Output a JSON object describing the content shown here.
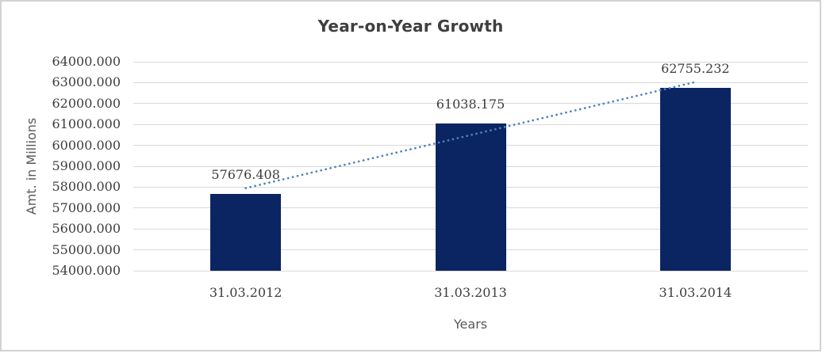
{
  "chart_data": {
    "type": "bar",
    "title": "Year-on-Year Growth",
    "xlabel": "Years",
    "ylabel": "Amt. in Millions",
    "categories": [
      "31.03.2012",
      "31.03.2013",
      "31.03.2014"
    ],
    "values": [
      57676.408,
      61038.175,
      62755.232
    ],
    "data_labels": [
      "57676.408",
      "61038.175",
      "62755.232"
    ],
    "ylim": [
      54000,
      64000
    ],
    "ytick_step": 1000,
    "yticks": [
      "64000.000",
      "63000.000",
      "62000.000",
      "61000.000",
      "60000.000",
      "59000.000",
      "58000.000",
      "57000.000",
      "56000.000",
      "55000.000",
      "54000.000"
    ],
    "grid": true,
    "legend": "none",
    "trendline": {
      "type": "linear",
      "style": "dotted"
    },
    "colors": {
      "bar": "#0b2562",
      "trendline": "#4f81bd",
      "gridline": "#d9d9d9",
      "title_text": "#3f3f3f",
      "tick_text": "#3d3d3d",
      "axis_label_text": "#595959",
      "frame_border": "#d2d2d2",
      "background": "#ffffff"
    }
  }
}
